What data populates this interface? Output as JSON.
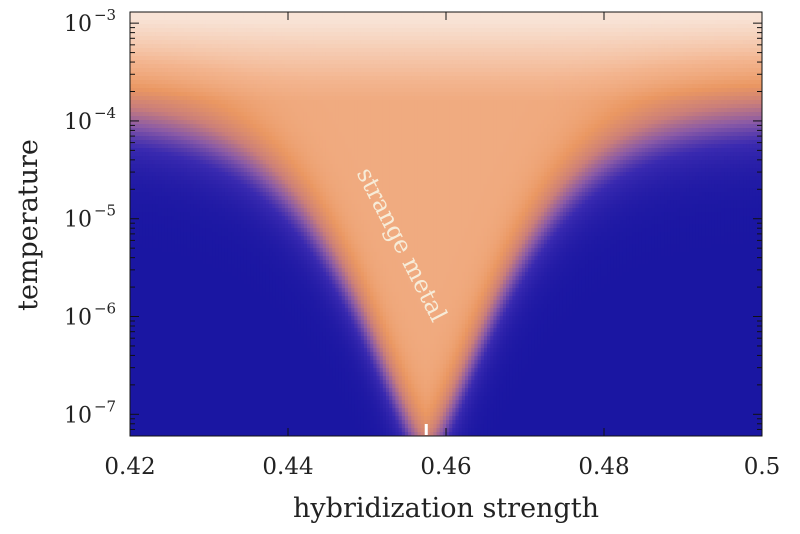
{
  "chart_data": {
    "type": "heatmap",
    "title": "",
    "xlabel": "hybridization strength",
    "ylabel": "temperature",
    "xlim": [
      0.42,
      0.5
    ],
    "ylim": [
      6e-08,
      0.0013
    ],
    "yscale": "log",
    "x_ticks": [
      {
        "value": 0.42,
        "label": "0.42"
      },
      {
        "value": 0.44,
        "label": "0.44"
      },
      {
        "value": 0.46,
        "label": "0.46"
      },
      {
        "value": 0.48,
        "label": "0.48"
      },
      {
        "value": 0.5,
        "label": "0.5"
      }
    ],
    "y_ticks": [
      {
        "value": 0.001,
        "base": "10",
        "exp": "−3"
      },
      {
        "value": 0.0001,
        "base": "10",
        "exp": "−4"
      },
      {
        "value": 1e-05,
        "base": "10",
        "exp": "−5"
      },
      {
        "value": 1e-06,
        "base": "10",
        "exp": "−6"
      },
      {
        "value": 1e-07,
        "base": "10",
        "exp": "−7"
      }
    ],
    "grid": false,
    "colormap": [
      "#1a16a2",
      "#3a2ab0",
      "#8a5aa6",
      "#ca7e7a",
      "#ea9762",
      "#f3b48e",
      "#f8e3d6"
    ],
    "critical_point": {
      "x": 0.4575,
      "y": 6e-08
    },
    "crossover": {
      "x_center": 0.4575,
      "T_flat_log": -3.9,
      "T_min_log": -7.4,
      "width_decades": 0.9
    },
    "annotations": [
      {
        "text": "strange metal",
        "x": 0.4535,
        "y": 5e-06,
        "color": "#f7ecd8",
        "rotation": 63
      }
    ]
  }
}
